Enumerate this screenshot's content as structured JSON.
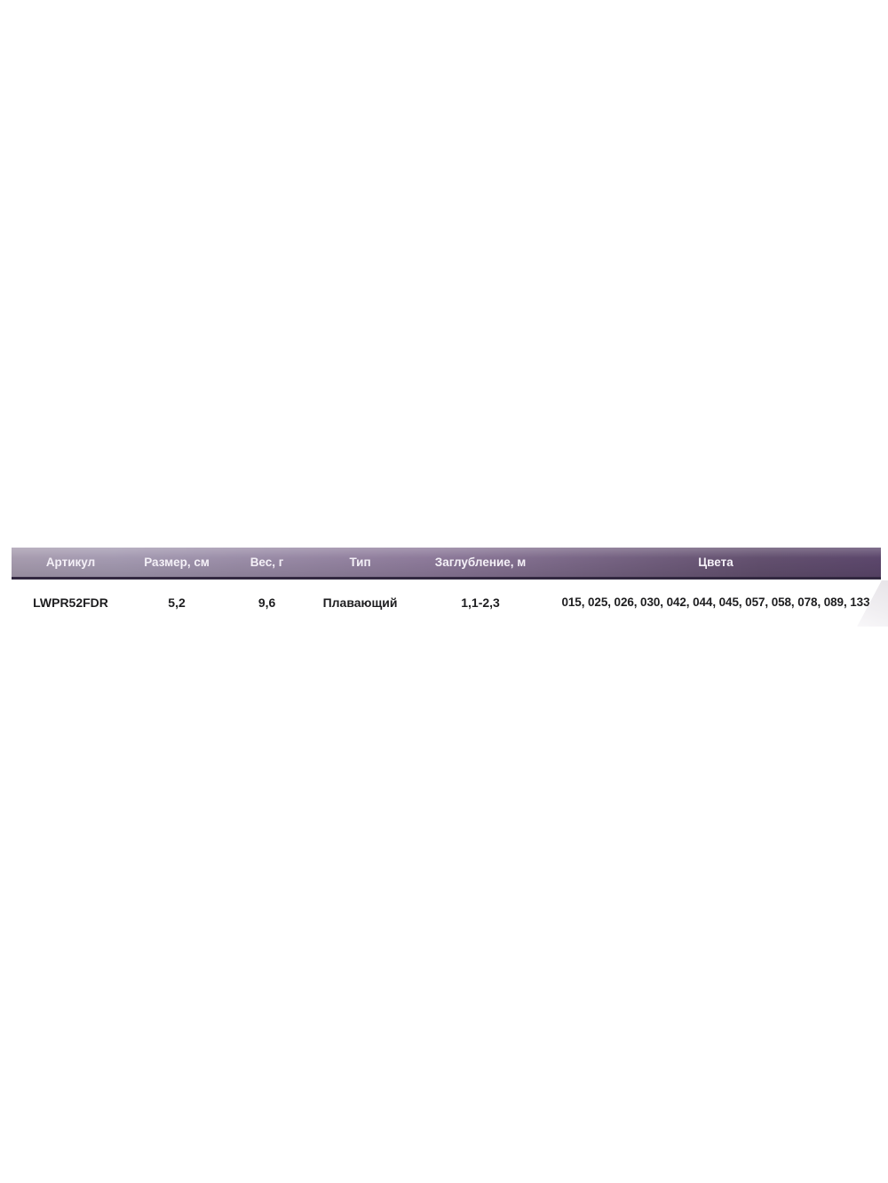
{
  "table": {
    "headers": [
      "Артикул",
      "Размер, см",
      "Вес, г",
      "Тип",
      "Заглубление, м",
      "Цвета"
    ],
    "rows": [
      {
        "article": "LWPR52FDR",
        "size_cm": "5,2",
        "weight_g": "9,6",
        "type": "Плавающий",
        "depth_m": "1,1-2,3",
        "colors": "015, 025, 026, 030, 042, 044, 045, 057, 058, 078, 089, 133"
      }
    ]
  },
  "colors": {
    "header_gradient_left": "#a79caf",
    "header_gradient_mid": "#8d7a9a",
    "header_gradient_right": "#5c476c",
    "header_border_bottom": "#322840",
    "header_text": "#f4f0f7",
    "row_text": "#1e1e20",
    "page_background": "#ffffff",
    "corner_shape": "#e8e5e9"
  }
}
